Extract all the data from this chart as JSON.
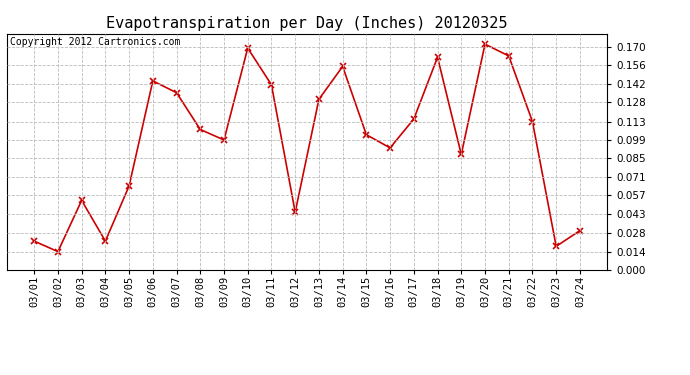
{
  "title": "Evapotranspiration per Day (Inches) 20120325",
  "copyright": "Copyright 2012 Cartronics.com",
  "dates": [
    "03/01",
    "03/02",
    "03/03",
    "03/04",
    "03/05",
    "03/06",
    "03/07",
    "03/08",
    "03/09",
    "03/10",
    "03/11",
    "03/12",
    "03/13",
    "03/14",
    "03/15",
    "03/16",
    "03/17",
    "03/18",
    "03/19",
    "03/20",
    "03/21",
    "03/22",
    "03/23",
    "03/24"
  ],
  "values": [
    0.022,
    0.014,
    0.053,
    0.022,
    0.064,
    0.144,
    0.135,
    0.107,
    0.099,
    0.169,
    0.141,
    0.044,
    0.13,
    0.155,
    0.103,
    0.093,
    0.115,
    0.162,
    0.088,
    0.172,
    0.163,
    0.113,
    0.018,
    0.03
  ],
  "line_color": "#cc0000",
  "marker": "x",
  "marker_color": "#cc0000",
  "marker_size": 4,
  "marker_linewidth": 1.2,
  "linewidth": 1.2,
  "ylim": [
    0.0,
    0.1799
  ],
  "yticks": [
    0.0,
    0.014,
    0.028,
    0.043,
    0.057,
    0.071,
    0.085,
    0.099,
    0.113,
    0.128,
    0.142,
    0.156,
    0.17
  ],
  "background_color": "#ffffff",
  "grid_color": "#bbbbbb",
  "title_fontsize": 11,
  "tick_fontsize": 7.5,
  "copyright_fontsize": 7
}
